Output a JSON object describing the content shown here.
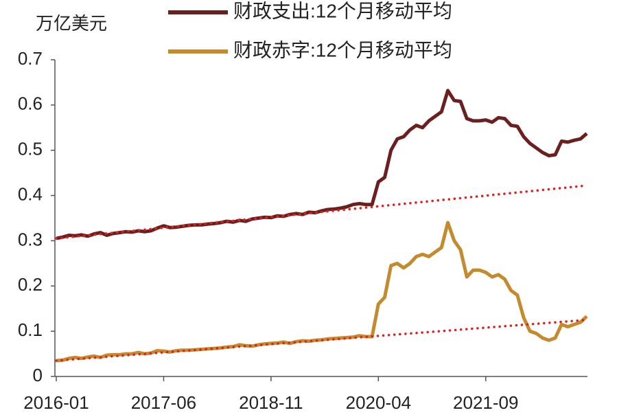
{
  "chart_data": {
    "type": "line",
    "y_label": "万亿美元",
    "categories": [
      "2016-01",
      null,
      null,
      null,
      null,
      null,
      null,
      null,
      null,
      null,
      null,
      null,
      null,
      null,
      null,
      null,
      null,
      "2017-06",
      null,
      null,
      null,
      null,
      null,
      null,
      null,
      null,
      null,
      null,
      null,
      null,
      null,
      null,
      null,
      null,
      "2018-11",
      null,
      null,
      null,
      null,
      null,
      null,
      null,
      null,
      null,
      null,
      null,
      null,
      null,
      null,
      null,
      null,
      "2020-04",
      null,
      null,
      null,
      null,
      null,
      null,
      null,
      null,
      null,
      null,
      null,
      null,
      null,
      null,
      null,
      null,
      "2021-09",
      null,
      null,
      null,
      null,
      null,
      null,
      null,
      null,
      null,
      null,
      null,
      null,
      null,
      null,
      null,
      null
    ],
    "series": [
      {
        "name": "财政支出:12个月移动平均",
        "color": "#6b1f1f",
        "values": [
          0.305,
          0.308,
          0.312,
          0.311,
          0.313,
          0.31,
          0.315,
          0.318,
          0.312,
          0.316,
          0.318,
          0.32,
          0.319,
          0.322,
          0.32,
          0.322,
          0.328,
          0.333,
          0.329,
          0.33,
          0.332,
          0.334,
          0.335,
          0.335,
          0.337,
          0.338,
          0.34,
          0.343,
          0.341,
          0.345,
          0.343,
          0.348,
          0.35,
          0.352,
          0.351,
          0.355,
          0.354,
          0.358,
          0.36,
          0.358,
          0.363,
          0.362,
          0.366,
          0.369,
          0.37,
          0.372,
          0.375,
          0.38,
          0.382,
          0.38,
          0.38,
          0.43,
          0.44,
          0.5,
          0.525,
          0.53,
          0.545,
          0.555,
          0.55,
          0.565,
          0.575,
          0.585,
          0.632,
          0.61,
          0.608,
          0.57,
          0.565,
          0.565,
          0.567,
          0.562,
          0.572,
          0.57,
          0.555,
          0.553,
          0.53,
          0.515,
          0.505,
          0.495,
          0.488,
          0.49,
          0.52,
          0.518,
          0.522,
          0.525,
          0.537
        ]
      },
      {
        "name": "财政赤字:12个月移动平均",
        "color": "#c48a2e",
        "values": [
          0.035,
          0.036,
          0.04,
          0.042,
          0.04,
          0.043,
          0.045,
          0.042,
          0.047,
          0.048,
          0.048,
          0.05,
          0.05,
          0.053,
          0.05,
          0.052,
          0.057,
          0.056,
          0.054,
          0.057,
          0.058,
          0.058,
          0.059,
          0.06,
          0.061,
          0.062,
          0.063,
          0.065,
          0.066,
          0.07,
          0.068,
          0.067,
          0.07,
          0.072,
          0.073,
          0.074,
          0.076,
          0.073,
          0.077,
          0.079,
          0.078,
          0.08,
          0.081,
          0.083,
          0.084,
          0.085,
          0.086,
          0.087,
          0.09,
          0.088,
          0.088,
          0.16,
          0.175,
          0.245,
          0.25,
          0.24,
          0.25,
          0.265,
          0.27,
          0.265,
          0.275,
          0.285,
          0.34,
          0.3,
          0.28,
          0.22,
          0.235,
          0.235,
          0.23,
          0.22,
          0.225,
          0.215,
          0.19,
          0.18,
          0.13,
          0.1,
          0.095,
          0.085,
          0.08,
          0.085,
          0.115,
          0.11,
          0.115,
          0.12,
          0.133
        ]
      }
    ],
    "trend_lines": [
      {
        "color": "#e02020",
        "values": [
          0.305,
          0.422
        ]
      },
      {
        "color": "#e02020",
        "values": [
          0.035,
          0.125
        ]
      }
    ],
    "ylim": [
      0,
      0.7
    ],
    "yticks": [
      0,
      0.1,
      0.2,
      0.3,
      0.4,
      0.5,
      0.6,
      0.7
    ],
    "grid": false
  }
}
